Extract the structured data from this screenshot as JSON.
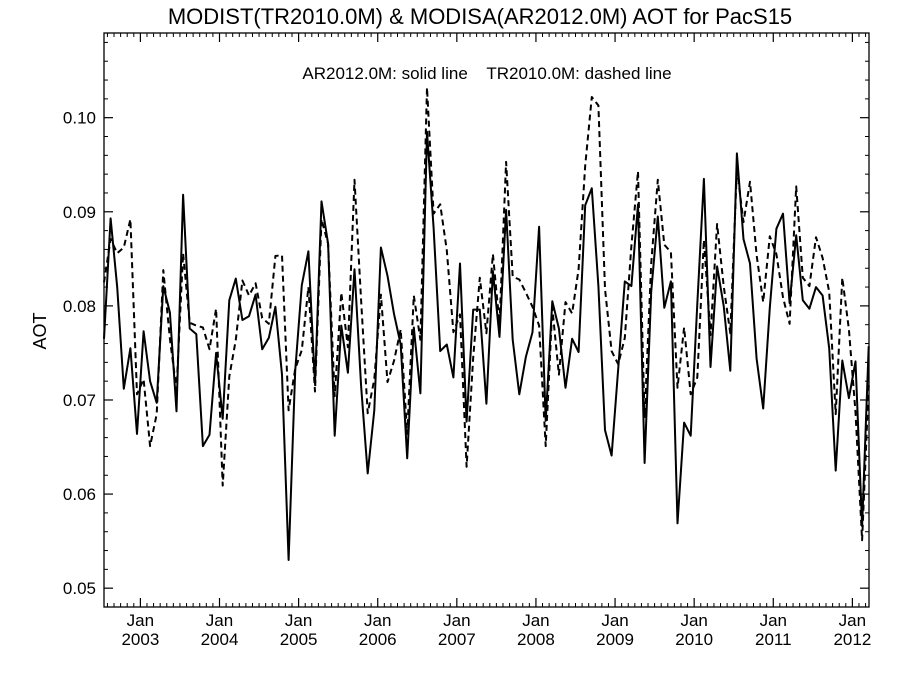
{
  "chart_data": {
    "type": "line",
    "title": "MODIST(TR2010.0M) & MODISA(AR2012.0M)  AOT for PacS15",
    "ylabel": "AOT",
    "xlabel": "",
    "annotation": "AR2012.0M: solid line    TR2010.0M: dashed line",
    "ylim": [
      0.048,
      0.109
    ],
    "xlim": [
      2002.54,
      2012.21
    ],
    "yticks": [
      0.05,
      0.06,
      0.07,
      0.08,
      0.09,
      0.1
    ],
    "ytick_labels": [
      "0.05",
      "0.06",
      "0.07",
      "0.08",
      "0.09",
      "0.10"
    ],
    "xticks": [
      {
        "month": "Jan",
        "year": "2003",
        "x": 2003.0
      },
      {
        "month": "Jan",
        "year": "2004",
        "x": 2004.0
      },
      {
        "month": "Jan",
        "year": "2005",
        "x": 2005.0
      },
      {
        "month": "Jan",
        "year": "2006",
        "x": 2006.0
      },
      {
        "month": "Jan",
        "year": "2007",
        "x": 2007.0
      },
      {
        "month": "Jan",
        "year": "2008",
        "x": 2008.0
      },
      {
        "month": "Jan",
        "year": "2009",
        "x": 2009.0
      },
      {
        "month": "Jan",
        "year": "2010",
        "x": 2010.0
      },
      {
        "month": "Jan",
        "year": "2011",
        "x": 2011.0
      },
      {
        "month": "Jan",
        "year": "2012",
        "x": 2012.0
      }
    ],
    "x_start": 2002.54,
    "x_step": 0.08333,
    "series": [
      {
        "name": "AR2012.0M",
        "style": "solid",
        "values": [
          0.0765,
          0.0893,
          0.082,
          0.0712,
          0.0755,
          0.0664,
          0.0773,
          0.072,
          0.0697,
          0.0821,
          0.0793,
          0.0688,
          0.0918,
          0.0776,
          0.077,
          0.0651,
          0.0663,
          0.075,
          0.068,
          0.0806,
          0.0829,
          0.0785,
          0.0789,
          0.0812,
          0.0754,
          0.0766,
          0.0799,
          0.0727,
          0.053,
          0.0731,
          0.0822,
          0.0858,
          0.0717,
          0.0911,
          0.0866,
          0.0662,
          0.0779,
          0.0729,
          0.0839,
          0.0715,
          0.0622,
          0.0689,
          0.0862,
          0.0832,
          0.0791,
          0.0759,
          0.0638,
          0.0777,
          0.0707,
          0.0985,
          0.0883,
          0.0752,
          0.0759,
          0.0724,
          0.0845,
          0.0677,
          0.0796,
          0.0796,
          0.0696,
          0.0837,
          0.0767,
          0.0902,
          0.0764,
          0.0706,
          0.0746,
          0.0772,
          0.0884,
          0.0678,
          0.0805,
          0.0776,
          0.0713,
          0.0765,
          0.0751,
          0.0907,
          0.0925,
          0.0821,
          0.0668,
          0.0641,
          0.0733,
          0.0826,
          0.0821,
          0.0908,
          0.0633,
          0.0815,
          0.0895,
          0.0798,
          0.0826,
          0.0569,
          0.0676,
          0.0662,
          0.0802,
          0.0935,
          0.0735,
          0.0842,
          0.08,
          0.0731,
          0.0962,
          0.0871,
          0.0845,
          0.0744,
          0.0691,
          0.0798,
          0.0882,
          0.0898,
          0.0803,
          0.0875,
          0.0806,
          0.0797,
          0.082,
          0.0811,
          0.0755,
          0.0625,
          0.0742,
          0.0702,
          0.0741,
          0.0566,
          0.0757
        ]
      },
      {
        "name": "TR2010.0M",
        "style": "dashed",
        "values": [
          0.0825,
          0.0871,
          0.0856,
          0.0862,
          0.0892,
          0.0706,
          0.0722,
          0.0651,
          0.0685,
          0.0838,
          0.0765,
          0.0711,
          0.0856,
          0.0782,
          0.0779,
          0.0777,
          0.0754,
          0.0797,
          0.0609,
          0.0725,
          0.0764,
          0.0827,
          0.0811,
          0.0824,
          0.0787,
          0.0781,
          0.0853,
          0.0854,
          0.0689,
          0.0733,
          0.0753,
          0.082,
          0.0709,
          0.0892,
          0.0866,
          0.0704,
          0.0814,
          0.0756,
          0.0934,
          0.0806,
          0.0686,
          0.0722,
          0.0812,
          0.0719,
          0.0742,
          0.0775,
          0.0664,
          0.0811,
          0.0764,
          0.1032,
          0.0898,
          0.0908,
          0.0859,
          0.0772,
          0.0791,
          0.0629,
          0.0745,
          0.083,
          0.0771,
          0.0855,
          0.0781,
          0.0953,
          0.0831,
          0.0828,
          0.0814,
          0.0799,
          0.0779,
          0.0651,
          0.0798,
          0.0727,
          0.0804,
          0.0792,
          0.0839,
          0.0949,
          0.1022,
          0.1013,
          0.0818,
          0.0752,
          0.0738,
          0.0766,
          0.0864,
          0.0943,
          0.0681,
          0.0845,
          0.0934,
          0.0865,
          0.0857,
          0.0713,
          0.0777,
          0.0706,
          0.0724,
          0.087,
          0.0769,
          0.0887,
          0.0821,
          0.0771,
          0.0946,
          0.0889,
          0.0932,
          0.0854,
          0.0804,
          0.0874,
          0.0855,
          0.0809,
          0.0781,
          0.0927,
          0.083,
          0.0821,
          0.0873,
          0.0851,
          0.0815,
          0.0685,
          0.083,
          0.0775,
          0.0687,
          0.0551,
          0.0716
        ]
      }
    ],
    "grid": false,
    "legend": "annotation text top-center"
  }
}
